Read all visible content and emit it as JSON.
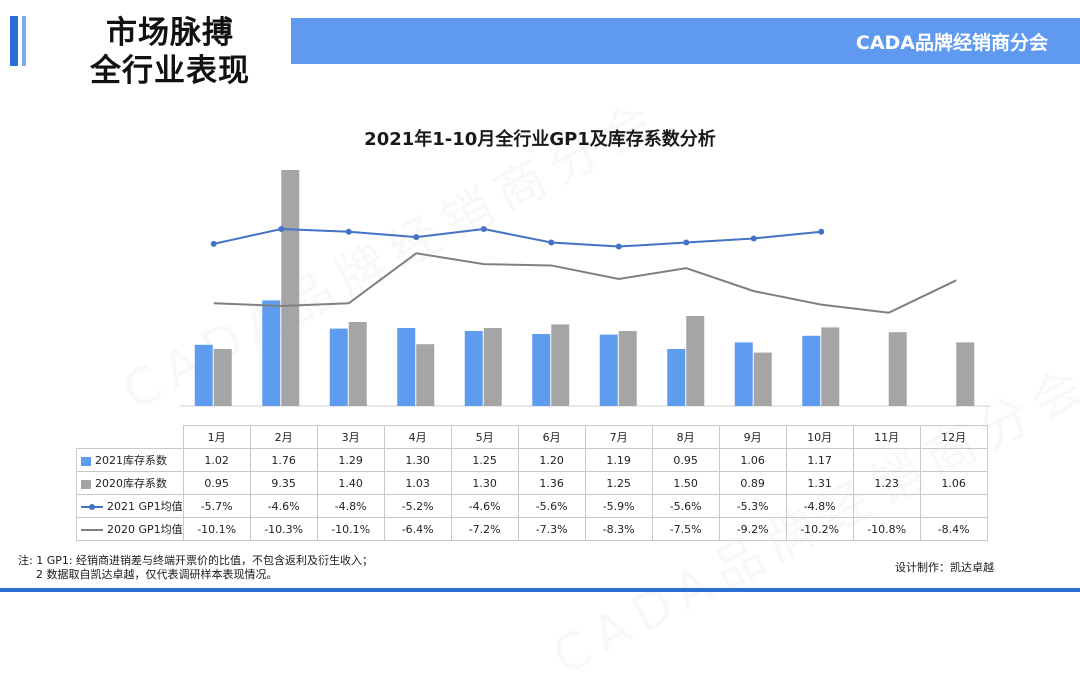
{
  "header": {
    "title_line1": "市场脉搏",
    "title_line2": "全行业表现",
    "org_name": "CADA品牌经销商分会"
  },
  "colors": {
    "bar2021": "#5e9cf0",
    "bar2020": "#a5a5a5",
    "line2021": "#4472c4",
    "line2020": "#808080",
    "accent": "#2b6fd6"
  },
  "chart_data": {
    "type": "bar+line",
    "title": "2021年1-10月全行业GP1及库存系数分析",
    "categories": [
      "1月",
      "2月",
      "3月",
      "4月",
      "5月",
      "6月",
      "7月",
      "8月",
      "9月",
      "10月",
      "11月",
      "12月"
    ],
    "series": [
      {
        "name": "2021库存系数",
        "kind": "bar",
        "values": [
          1.02,
          1.76,
          1.29,
          1.3,
          1.25,
          1.2,
          1.19,
          0.95,
          1.06,
          1.17,
          null,
          null
        ]
      },
      {
        "name": "2020库存系数",
        "kind": "bar",
        "values": [
          0.95,
          9.35,
          1.4,
          1.03,
          1.3,
          1.36,
          1.25,
          1.5,
          0.89,
          1.31,
          1.23,
          1.06
        ]
      },
      {
        "name": "2021 GP1均值",
        "kind": "line",
        "marker": true,
        "values": [
          -5.7,
          -4.6,
          -4.8,
          -5.2,
          -4.6,
          -5.6,
          -5.9,
          -5.6,
          -5.3,
          -4.8,
          null,
          null
        ]
      },
      {
        "name": "2020 GP1均值",
        "kind": "line",
        "marker": false,
        "values": [
          -10.1,
          -10.3,
          -10.1,
          -6.4,
          -7.2,
          -7.3,
          -8.3,
          -7.5,
          -9.2,
          -10.2,
          -10.8,
          -8.4
        ]
      }
    ],
    "table": {
      "header": [
        "1月",
        "2月",
        "3月",
        "4月",
        "5月",
        "6月",
        "7月",
        "8月",
        "9月",
        "10月",
        "11月",
        "12月"
      ],
      "rows": [
        {
          "label": "2021库存系数",
          "cells": [
            "1.02",
            "1.76",
            "1.29",
            "1.30",
            "1.25",
            "1.20",
            "1.19",
            "0.95",
            "1.06",
            "1.17",
            "",
            ""
          ]
        },
        {
          "label": "2020库存系数",
          "cells": [
            "0.95",
            "9.35",
            "1.40",
            "1.03",
            "1.30",
            "1.36",
            "1.25",
            "1.50",
            "0.89",
            "1.31",
            "1.23",
            "1.06"
          ]
        },
        {
          "label": "2021 GP1均值",
          "cells": [
            "-5.7%",
            "-4.6%",
            "-4.8%",
            "-5.2%",
            "-4.6%",
            "-5.6%",
            "-5.9%",
            "-5.6%",
            "-5.3%",
            "-4.8%",
            "",
            ""
          ]
        },
        {
          "label": "2020 GP1均值",
          "cells": [
            "-10.1%",
            "-10.3%",
            "-10.1%",
            "-6.4%",
            "-7.2%",
            "-7.3%",
            "-8.3%",
            "-7.5%",
            "-9.2%",
            "-10.2%",
            "-10.8%",
            "-8.4%"
          ]
        }
      ]
    }
  },
  "notes": {
    "line1": "注: 1 GP1: 经销商进销差与终端开票价的比值，不包含返利及衍生收入；",
    "line2": "2 数据取自凯达卓越，仅代表调研样本表现情况。"
  },
  "credit": "设计制作：凯达卓越",
  "watermark": "CADA品牌经销商分会"
}
